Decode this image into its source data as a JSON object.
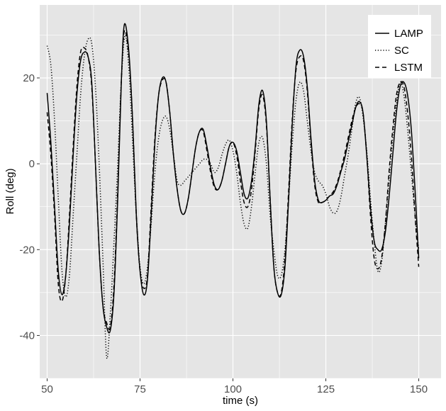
{
  "chart_data": {
    "type": "line",
    "xlabel": "time (s)",
    "ylabel": "Roll (deg)",
    "xlim": [
      48,
      156
    ],
    "ylim": [
      -50,
      37
    ],
    "xticks": [
      50,
      75,
      100,
      125,
      150
    ],
    "xtick_labels": [
      "50",
      "75",
      "100",
      "125",
      "150"
    ],
    "yticks": [
      -40,
      -20,
      0,
      20
    ],
    "ytick_labels": [
      "-40",
      "-20",
      "0",
      "20"
    ],
    "grid": true,
    "legend_position": "top-right",
    "colors": {
      "panel": "#e5e5e5",
      "grid": "#ffffff",
      "line": "#000000",
      "tick_text": "#4d4d4d"
    },
    "series": [
      {
        "name": "LAMP",
        "linetype": "solid",
        "points": [
          [
            50,
            16.5
          ],
          [
            51,
            5
          ],
          [
            52,
            -10
          ],
          [
            53,
            -25
          ],
          [
            54,
            -30.5
          ],
          [
            55,
            -26
          ],
          [
            56,
            -14
          ],
          [
            57,
            2
          ],
          [
            58,
            16
          ],
          [
            59,
            24
          ],
          [
            60,
            26
          ],
          [
            61,
            25
          ],
          [
            62,
            19
          ],
          [
            63,
            0
          ],
          [
            64,
            -20
          ],
          [
            65,
            -33
          ],
          [
            66,
            -38
          ],
          [
            67,
            -38.8
          ],
          [
            68,
            -30
          ],
          [
            69,
            -8
          ],
          [
            70,
            20
          ],
          [
            70.8,
            32.5
          ],
          [
            72,
            26
          ],
          [
            73,
            10
          ],
          [
            74,
            -12
          ],
          [
            75,
            -25
          ],
          [
            76,
            -30.5
          ],
          [
            77,
            -27
          ],
          [
            78,
            -12
          ],
          [
            79,
            5
          ],
          [
            80,
            16
          ],
          [
            81,
            20
          ],
          [
            82,
            19
          ],
          [
            83,
            12
          ],
          [
            84,
            2
          ],
          [
            85,
            -6
          ],
          [
            86,
            -11
          ],
          [
            87,
            -11.5
          ],
          [
            88,
            -8
          ],
          [
            89,
            -2
          ],
          [
            90,
            4
          ],
          [
            91,
            7.5
          ],
          [
            92,
            8
          ],
          [
            93,
            4
          ],
          [
            94,
            -1
          ],
          [
            95,
            -5
          ],
          [
            96,
            -6
          ],
          [
            97,
            -4
          ],
          [
            98,
            0
          ],
          [
            99,
            4
          ],
          [
            100,
            5
          ],
          [
            101,
            3
          ],
          [
            102,
            -2
          ],
          [
            103,
            -7
          ],
          [
            104,
            -8
          ],
          [
            105,
            -4
          ],
          [
            106,
            4
          ],
          [
            107,
            14
          ],
          [
            108,
            17
          ],
          [
            109,
            10
          ],
          [
            110,
            -8
          ],
          [
            111,
            -24
          ],
          [
            112,
            -30
          ],
          [
            113,
            -30.5
          ],
          [
            114,
            -24
          ],
          [
            115,
            -8
          ],
          [
            116,
            10
          ],
          [
            117,
            23
          ],
          [
            118,
            26.5
          ],
          [
            119,
            25
          ],
          [
            120,
            18
          ],
          [
            121,
            6
          ],
          [
            122,
            -4
          ],
          [
            123,
            -8.5
          ],
          [
            124,
            -9
          ],
          [
            125,
            -8.5
          ],
          [
            126,
            -7.5
          ],
          [
            127,
            -7
          ],
          [
            128,
            -5
          ],
          [
            129,
            -2
          ],
          [
            130,
            1
          ],
          [
            131,
            5
          ],
          [
            132,
            9
          ],
          [
            133,
            13
          ],
          [
            134,
            14.5
          ],
          [
            135,
            12
          ],
          [
            136,
            2
          ],
          [
            137,
            -10
          ],
          [
            138,
            -18
          ],
          [
            139,
            -20
          ],
          [
            140,
            -20
          ],
          [
            141,
            -16
          ],
          [
            142,
            -8
          ],
          [
            143,
            2
          ],
          [
            144,
            12
          ],
          [
            145,
            18
          ],
          [
            146,
            19
          ],
          [
            147,
            16
          ],
          [
            148,
            8
          ],
          [
            149,
            -6
          ],
          [
            150,
            -22
          ]
        ]
      },
      {
        "name": "SC",
        "linetype": "dotted",
        "points": [
          [
            50,
            27.5
          ],
          [
            51,
            23
          ],
          [
            52,
            10
          ],
          [
            53,
            -8
          ],
          [
            54,
            -25
          ],
          [
            55,
            -31
          ],
          [
            56,
            -26
          ],
          [
            57,
            -12
          ],
          [
            58,
            2
          ],
          [
            59,
            16
          ],
          [
            60,
            25
          ],
          [
            61,
            29
          ],
          [
            62,
            28
          ],
          [
            63,
            18
          ],
          [
            64,
            0
          ],
          [
            65,
            -22
          ],
          [
            66,
            -45
          ],
          [
            67,
            -35
          ],
          [
            68,
            -18
          ],
          [
            69,
            0
          ],
          [
            70,
            20
          ],
          [
            71,
            30
          ],
          [
            72,
            22
          ],
          [
            73,
            5
          ],
          [
            74,
            -12
          ],
          [
            75,
            -24
          ],
          [
            76,
            -28
          ],
          [
            77,
            -24
          ],
          [
            78,
            -14
          ],
          [
            79,
            -2
          ],
          [
            80,
            6
          ],
          [
            81,
            10
          ],
          [
            82,
            11
          ],
          [
            83,
            8
          ],
          [
            84,
            2
          ],
          [
            85,
            -4
          ],
          [
            86,
            -5
          ],
          [
            87,
            -4
          ],
          [
            88,
            -3
          ],
          [
            89,
            -2
          ],
          [
            90,
            -1
          ],
          [
            91,
            0
          ],
          [
            92,
            1
          ],
          [
            93,
            1
          ],
          [
            94,
            0
          ],
          [
            95,
            -2
          ],
          [
            96,
            -1
          ],
          [
            97,
            2
          ],
          [
            98,
            4.5
          ],
          [
            99,
            5.5
          ],
          [
            100,
            3
          ],
          [
            101,
            -2
          ],
          [
            102,
            -9
          ],
          [
            103,
            -14
          ],
          [
            104,
            -15
          ],
          [
            105,
            -10
          ],
          [
            106,
            -2
          ],
          [
            107,
            5
          ],
          [
            108,
            6
          ],
          [
            109,
            0
          ],
          [
            110,
            -12
          ],
          [
            111,
            -20
          ],
          [
            112,
            -26
          ],
          [
            113,
            -26
          ],
          [
            114,
            -20
          ],
          [
            115,
            -8
          ],
          [
            116,
            5
          ],
          [
            117,
            15
          ],
          [
            118,
            19
          ],
          [
            119,
            17
          ],
          [
            120,
            10
          ],
          [
            121,
            3
          ],
          [
            122,
            -2
          ],
          [
            123,
            -4
          ],
          [
            124,
            -5
          ],
          [
            125,
            -7
          ],
          [
            126,
            -10
          ],
          [
            127,
            -11.5
          ],
          [
            128,
            -11
          ],
          [
            129,
            -8
          ],
          [
            130,
            -3
          ],
          [
            131,
            2
          ],
          [
            132,
            8
          ],
          [
            133,
            14
          ],
          [
            134,
            15.5
          ],
          [
            135,
            11
          ],
          [
            136,
            3
          ],
          [
            137,
            -8
          ],
          [
            138,
            -18
          ],
          [
            139,
            -25
          ],
          [
            140,
            -23
          ],
          [
            141,
            -14
          ],
          [
            142,
            -4
          ],
          [
            143,
            6
          ],
          [
            144,
            14
          ],
          [
            145,
            19
          ],
          [
            146,
            16
          ],
          [
            147,
            8
          ],
          [
            148,
            -2
          ],
          [
            149,
            -12
          ],
          [
            150,
            -20
          ]
        ]
      },
      {
        "name": "LSTM",
        "linetype": "dashed",
        "points": [
          [
            50,
            12
          ],
          [
            51,
            2
          ],
          [
            52,
            -12
          ],
          [
            53,
            -28
          ],
          [
            54,
            -32
          ],
          [
            55,
            -26
          ],
          [
            56,
            -12
          ],
          [
            57,
            4
          ],
          [
            58,
            18
          ],
          [
            59,
            26
          ],
          [
            60,
            27
          ],
          [
            61,
            25
          ],
          [
            62,
            18
          ],
          [
            63,
            0
          ],
          [
            64,
            -20
          ],
          [
            65,
            -33
          ],
          [
            66,
            -37
          ],
          [
            67,
            -38
          ],
          [
            68,
            -28
          ],
          [
            69,
            -6
          ],
          [
            70,
            20
          ],
          [
            70.8,
            31
          ],
          [
            72,
            25
          ],
          [
            73,
            10
          ],
          [
            74,
            -12
          ],
          [
            75,
            -25
          ],
          [
            76,
            -29
          ],
          [
            77,
            -26
          ],
          [
            78,
            -10
          ],
          [
            79,
            6
          ],
          [
            80,
            16
          ],
          [
            81,
            19.5
          ],
          [
            82,
            19
          ],
          [
            83,
            12
          ],
          [
            84,
            2
          ],
          [
            85,
            -6
          ],
          [
            86,
            -11
          ],
          [
            87,
            -11.5
          ],
          [
            88,
            -8
          ],
          [
            89,
            -2
          ],
          [
            90,
            4
          ],
          [
            91,
            7.5
          ],
          [
            92,
            7.5
          ],
          [
            93,
            3
          ],
          [
            94,
            -2
          ],
          [
            95,
            -5.5
          ],
          [
            96,
            -6
          ],
          [
            97,
            -4
          ],
          [
            98,
            0
          ],
          [
            99,
            4
          ],
          [
            100,
            5
          ],
          [
            101,
            2
          ],
          [
            102,
            -4
          ],
          [
            103,
            -9
          ],
          [
            104,
            -10
          ],
          [
            105,
            -6
          ],
          [
            106,
            3
          ],
          [
            107,
            13
          ],
          [
            108,
            16
          ],
          [
            109,
            9
          ],
          [
            110,
            -8
          ],
          [
            111,
            -24
          ],
          [
            112,
            -30
          ],
          [
            113,
            -30
          ],
          [
            114,
            -22
          ],
          [
            115,
            -6
          ],
          [
            116,
            11
          ],
          [
            117,
            22
          ],
          [
            118,
            25
          ],
          [
            119,
            24
          ],
          [
            120,
            17
          ],
          [
            121,
            5
          ],
          [
            122,
            -5
          ],
          [
            123,
            -9
          ],
          [
            124,
            -9
          ],
          [
            125,
            -8.5
          ],
          [
            126,
            -7.5
          ],
          [
            127,
            -6.5
          ],
          [
            128,
            -4.5
          ],
          [
            129,
            -1.5
          ],
          [
            130,
            2
          ],
          [
            131,
            6
          ],
          [
            132,
            10
          ],
          [
            133,
            13
          ],
          [
            134,
            14
          ],
          [
            135,
            12
          ],
          [
            136,
            2
          ],
          [
            137,
            -12
          ],
          [
            138,
            -22
          ],
          [
            139,
            -24.5
          ],
          [
            140,
            -22
          ],
          [
            141,
            -14
          ],
          [
            142,
            -2
          ],
          [
            143,
            8
          ],
          [
            144,
            16
          ],
          [
            145,
            19
          ],
          [
            146,
            18
          ],
          [
            147,
            12
          ],
          [
            148,
            2
          ],
          [
            149,
            -12
          ],
          [
            150,
            -24
          ]
        ]
      }
    ]
  }
}
